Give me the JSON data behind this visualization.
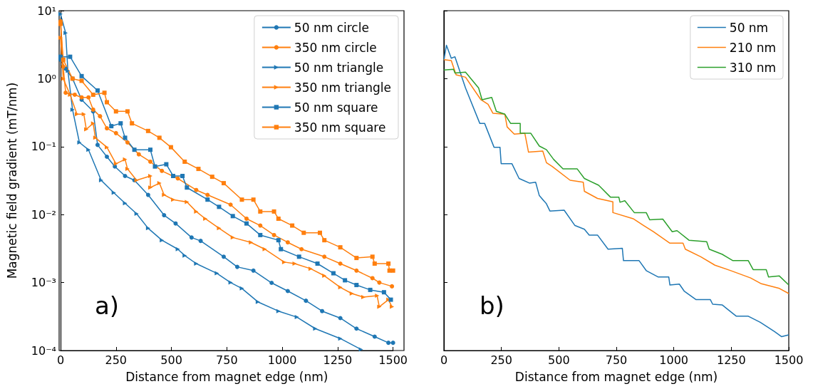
{
  "chart_data": [
    {
      "type": "line",
      "xlabel": "Distance from magnet edge (nm)",
      "ylabel": "Magnetic field gradient (mT/nm)",
      "log": "y",
      "grid": false,
      "legend": "top right",
      "xlim": [
        0,
        1500
      ],
      "xticks": [
        0,
        250,
        500,
        750,
        1000,
        1250,
        1500
      ],
      "ylim": [
        0.0001,
        10
      ],
      "yticks": [
        {
          "value": 0.0001,
          "label": "10⁻⁴"
        },
        {
          "value": 0.001,
          "label": "10⁻³"
        },
        {
          "value": 0.01,
          "label": "10⁻²"
        },
        {
          "value": 0.1,
          "label": "10⁻¹"
        },
        {
          "value": 1,
          "label": "10⁰"
        },
        {
          "value": 10,
          "label": "10¹"
        }
      ],
      "annotations": [
        "a)"
      ],
      "series": [
        {
          "name": "50 nm circle",
          "color": "#1f77b4",
          "marker": "circle",
          "x": [
            0,
            23,
            54,
            95,
            147,
            167,
            209,
            245,
            291,
            333,
            395,
            467,
            519,
            591,
            632,
            736,
            797,
            870,
            952,
            1025,
            1107,
            1180,
            1262,
            1335,
            1417,
            1479,
            1500
          ],
          "values": [
            1.9,
            1.4,
            1.0,
            0.49,
            0.33,
            0.106,
            0.071,
            0.051,
            0.037,
            0.032,
            0.0195,
            0.0098,
            0.0074,
            0.0046,
            0.0041,
            0.0024,
            0.0017,
            0.0015,
            0.00099,
            0.00075,
            0.00054,
            0.00038,
            0.0003,
            0.00021,
            0.00016,
            0.00013,
            0.00013
          ]
        },
        {
          "name": "350 nm circle",
          "color": "#ff7f0e",
          "marker": "circle",
          "x": [
            0,
            12,
            23,
            64,
            95,
            126,
            147,
            178,
            209,
            250,
            302,
            353,
            405,
            457,
            529,
            612,
            663,
            767,
            839,
            901,
            963,
            1025,
            1087,
            1190,
            1262,
            1335,
            1407,
            1438,
            1495
          ],
          "values": [
            7.0,
            1.5,
            0.62,
            0.58,
            0.53,
            0.53,
            0.35,
            0.28,
            0.186,
            0.158,
            0.115,
            0.077,
            0.06,
            0.044,
            0.034,
            0.023,
            0.0195,
            0.014,
            0.0087,
            0.0069,
            0.005,
            0.0039,
            0.0031,
            0.0024,
            0.0019,
            0.0015,
            0.00116,
            0.001,
            0.00088
          ]
        },
        {
          "name": "50 nm triangle",
          "color": "#1f77b4",
          "marker": "triangle",
          "x": [
            0,
            23,
            33,
            54,
            85,
            126,
            183,
            240,
            291,
            343,
            395,
            457,
            529,
            560,
            612,
            705,
            767,
            818,
            890,
            983,
            1066,
            1149,
            1262,
            1355
          ],
          "values": [
            8.9,
            4.7,
            1.3,
            0.35,
            0.115,
            0.09,
            0.032,
            0.021,
            0.0147,
            0.0103,
            0.0063,
            0.0042,
            0.0031,
            0.0025,
            0.0019,
            0.00137,
            0.001,
            0.00082,
            0.00052,
            0.00038,
            0.00031,
            0.00021,
            0.00015,
            0.000104
          ]
        },
        {
          "name": "350 nm triangle",
          "color": "#ff7f0e",
          "marker": "triangle",
          "x": [
            0,
            12,
            43,
            74,
            105,
            116,
            147,
            157,
            209,
            250,
            291,
            302,
            343,
            405,
            405,
            446,
            467,
            508,
            570,
            612,
            653,
            715,
            777,
            859,
            921,
            1009,
            1056,
            1128,
            1190,
            1262,
            1314,
            1366,
            1428,
            1438,
            1479,
            1495
          ],
          "values": [
            4.0,
            1.0,
            0.58,
            0.3,
            0.3,
            0.18,
            0.22,
            0.135,
            0.098,
            0.056,
            0.065,
            0.047,
            0.032,
            0.037,
            0.025,
            0.029,
            0.0195,
            0.0166,
            0.0153,
            0.0111,
            0.0087,
            0.0063,
            0.0046,
            0.0039,
            0.0031,
            0.002,
            0.0019,
            0.0016,
            0.00126,
            0.00085,
            0.00069,
            0.00061,
            0.00064,
            0.00044,
            0.00056,
            0.00044
          ]
        },
        {
          "name": "50 nm square",
          "color": "#1f77b4",
          "marker": "square",
          "x": [
            0,
            43,
            95,
            167,
            229,
            271,
            291,
            333,
            405,
            426,
            477,
            508,
            550,
            570,
            663,
            715,
            777,
            839,
            901,
            983,
            994,
            1076,
            1159,
            1231,
            1283,
            1335,
            1397,
            1459,
            1490
          ],
          "values": [
            2.1,
            2.1,
            1.09,
            0.67,
            0.2,
            0.22,
            0.135,
            0.09,
            0.09,
            0.051,
            0.055,
            0.037,
            0.037,
            0.025,
            0.0166,
            0.013,
            0.0095,
            0.0074,
            0.005,
            0.0042,
            0.0031,
            0.0024,
            0.0019,
            0.00137,
            0.00108,
            0.00092,
            0.00078,
            0.00072,
            0.00056
          ]
        },
        {
          "name": "350 nm square",
          "color": "#ff7f0e",
          "marker": "square",
          "x": [
            0,
            12,
            54,
            95,
            147,
            198,
            209,
            250,
            302,
            322,
            395,
            446,
            498,
            560,
            622,
            684,
            736,
            818,
            870,
            901,
            963,
            983,
            1045,
            1097,
            1170,
            1190,
            1262,
            1335,
            1407,
            1417,
            1479,
            1484,
            1500
          ],
          "values": [
            6.4,
            1.9,
            1.0,
            0.93,
            0.58,
            0.62,
            0.45,
            0.33,
            0.33,
            0.22,
            0.17,
            0.135,
            0.098,
            0.06,
            0.047,
            0.036,
            0.029,
            0.0166,
            0.0166,
            0.0111,
            0.0111,
            0.0087,
            0.0069,
            0.0054,
            0.0054,
            0.0042,
            0.0033,
            0.0023,
            0.0024,
            0.0019,
            0.0019,
            0.0015,
            0.0015
          ]
        }
      ]
    },
    {
      "type": "line",
      "xlabel": "Distance from magnet edge (nm)",
      "log": "y",
      "grid": false,
      "legend": "top right",
      "tick_labels": "x",
      "xlim": [
        0,
        1500
      ],
      "xticks": [
        0,
        250,
        500,
        750,
        1000,
        1250,
        1500
      ],
      "ylim": [
        0.0001,
        10
      ],
      "yticks": [
        {
          "value": 0.0001,
          "label": null
        },
        {
          "value": 0.001,
          "label": null
        },
        {
          "value": 0.01,
          "label": null
        },
        {
          "value": 0.1,
          "label": null
        },
        {
          "value": 1,
          "label": null
        },
        {
          "value": 10,
          "label": null
        }
      ],
      "annotations": [
        "b)"
      ],
      "series": [
        {
          "name": "50 nm",
          "color": "#1f77b4",
          "x": [
            0,
            11,
            32,
            48,
            94,
            156,
            177,
            218,
            244,
            249,
            296,
            327,
            373,
            399,
            415,
            446,
            461,
            523,
            570,
            611,
            632,
            668,
            714,
            776,
            781,
            849,
            880,
            931,
            978,
            983,
            1024,
            1045,
            1097,
            1159,
            1169,
            1210,
            1272,
            1324,
            1376,
            1438,
            1469,
            1500
          ],
          "values": [
            1.9,
            3.1,
            2.0,
            2.1,
            0.73,
            0.22,
            0.22,
            0.098,
            0.098,
            0.056,
            0.056,
            0.034,
            0.029,
            0.03,
            0.019,
            0.0144,
            0.0113,
            0.0116,
            0.0069,
            0.0061,
            0.005,
            0.005,
            0.0031,
            0.0032,
            0.0021,
            0.0021,
            0.0015,
            0.00121,
            0.00121,
            0.00092,
            0.00095,
            0.00075,
            0.00056,
            0.00056,
            0.00048,
            0.00047,
            0.00032,
            0.00032,
            0.00026,
            0.00019,
            0.00016,
            0.00017
          ]
        },
        {
          "name": "210 nm",
          "color": "#ff7f0e",
          "x": [
            0,
            32,
            53,
            94,
            161,
            192,
            213,
            265,
            275,
            306,
            352,
            368,
            430,
            446,
            471,
            549,
            606,
            611,
            668,
            735,
            735,
            823,
            869,
            911,
            983,
            1040,
            1050,
            1117,
            1179,
            1252,
            1334,
            1381,
            1459,
            1500
          ],
          "values": [
            1.9,
            1.85,
            1.14,
            1.05,
            0.49,
            0.42,
            0.31,
            0.3,
            0.195,
            0.153,
            0.157,
            0.083,
            0.086,
            0.058,
            0.051,
            0.032,
            0.03,
            0.022,
            0.0173,
            0.0154,
            0.0107,
            0.0087,
            0.0069,
            0.0056,
            0.0038,
            0.0038,
            0.0031,
            0.0024,
            0.0018,
            0.00148,
            0.00117,
            0.00096,
            0.00082,
            0.00069
          ]
        },
        {
          "name": "310 nm",
          "color": "#2ca02c",
          "x": [
            0,
            42,
            48,
            94,
            151,
            166,
            208,
            228,
            265,
            290,
            332,
            332,
            378,
            415,
            446,
            477,
            518,
            580,
            611,
            673,
            725,
            761,
            766,
            787,
            828,
            880,
            895,
            952,
            993,
            1014,
            1066,
            1143,
            1154,
            1211,
            1257,
            1324,
            1345,
            1402,
            1412,
            1459,
            1500
          ],
          "values": [
            1.34,
            1.37,
            1.21,
            1.25,
            0.73,
            0.49,
            0.53,
            0.33,
            0.3,
            0.22,
            0.22,
            0.157,
            0.157,
            0.102,
            0.09,
            0.065,
            0.047,
            0.047,
            0.034,
            0.027,
            0.018,
            0.018,
            0.0152,
            0.016,
            0.0107,
            0.0107,
            0.0084,
            0.0086,
            0.0056,
            0.0058,
            0.0042,
            0.004,
            0.0031,
            0.0026,
            0.0021,
            0.0021,
            0.00155,
            0.00155,
            0.00121,
            0.00125,
            0.00092
          ]
        }
      ]
    }
  ]
}
